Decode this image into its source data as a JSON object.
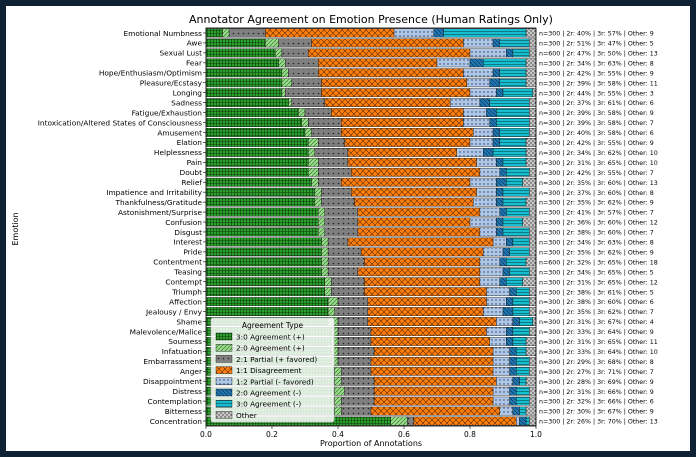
{
  "chart_data": {
    "type": "bar",
    "orientation": "horizontal",
    "stacked": true,
    "title": "Annotator Agreement on Emotion Presence (Human Ratings Only)",
    "xlabel": "Proportion of Annotations",
    "ylabel": "Emotion",
    "xlim": [
      0,
      1
    ],
    "xticks": [
      "0.0",
      "0.2",
      "0.4",
      "0.6",
      "0.8",
      "1.0"
    ],
    "legend_title": "Agreement Type",
    "legend_position": "lower-left",
    "series": [
      {
        "name": "3:0 Agreement (+)",
        "color": "#2ca02c",
        "pattern": "grid"
      },
      {
        "name": "2:0 Agreement (+)",
        "color": "#98df8a",
        "pattern": "diag"
      },
      {
        "name": "2:1 Partial (+ favored)",
        "color": "#7f7f7f",
        "pattern": "dots"
      },
      {
        "name": "1:1 Disagreement",
        "color": "#ff7f0e",
        "pattern": "cross"
      },
      {
        "name": "1:2 Partial (- favored)",
        "color": "#aec7e8",
        "pattern": "dots"
      },
      {
        "name": "2:0 Agreement (-)",
        "color": "#1f77b4",
        "pattern": "diag"
      },
      {
        "name": "3:0 Agreement (-)",
        "color": "#17becf",
        "pattern": "hline"
      },
      {
        "name": "Other",
        "color": "#c7c7c7",
        "pattern": "dots"
      }
    ],
    "rows": [
      {
        "label": "Emotional Numbness",
        "values": [
          0.05,
          0.02,
          0.11,
          0.39,
          0.12,
          0.03,
          0.25,
          0.03
        ],
        "annotation": "n=300 | 2r: 40% | 3r: 57% | Other: 9"
      },
      {
        "label": "Awe",
        "values": [
          0.18,
          0.04,
          0.1,
          0.46,
          0.09,
          0.02,
          0.09,
          0.02
        ],
        "annotation": "n=300 | 2r: 51% | 3r: 47% | Other: 5"
      },
      {
        "label": "Sexual Lust",
        "values": [
          0.21,
          0.02,
          0.08,
          0.49,
          0.11,
          0.02,
          0.05,
          0.02
        ],
        "annotation": "n=600 | 2r: 47% | 3r: 50% | Other: 13"
      },
      {
        "label": "Fear",
        "values": [
          0.22,
          0.02,
          0.1,
          0.36,
          0.1,
          0.04,
          0.13,
          0.03
        ],
        "annotation": "n=300 | 2r: 34% | 3r: 63% | Other: 8"
      },
      {
        "label": "Hope/Enthusiasm/Optimism",
        "values": [
          0.23,
          0.02,
          0.09,
          0.44,
          0.09,
          0.02,
          0.08,
          0.03
        ],
        "annotation": "n=300 | 2r: 42% | 3r: 55% | Other: 9"
      },
      {
        "label": "Pleasure/Ecstasy",
        "values": [
          0.23,
          0.03,
          0.09,
          0.44,
          0.07,
          0.03,
          0.08,
          0.03
        ],
        "annotation": "n=300 | 2r: 39% | 3r: 58% | Other: 11"
      },
      {
        "label": "Longing",
        "values": [
          0.23,
          0.01,
          0.11,
          0.45,
          0.08,
          0.02,
          0.09,
          0.01
        ],
        "annotation": "n=300 | 2r: 44% | 3r: 55% | Other: 3"
      },
      {
        "label": "Sadness",
        "values": [
          0.25,
          0.01,
          0.1,
          0.38,
          0.09,
          0.03,
          0.12,
          0.02
        ],
        "annotation": "n=300 | 2r: 37% | 3r: 61% | Other: 6"
      },
      {
        "label": "Fatigue/Exhaustion",
        "values": [
          0.28,
          0.02,
          0.08,
          0.4,
          0.07,
          0.03,
          0.1,
          0.02
        ],
        "annotation": "n=300 | 2r: 39% | 3r: 58% | Other: 9"
      },
      {
        "label": "Intoxication/Altered States of Consciousness",
        "values": [
          0.29,
          0.02,
          0.1,
          0.37,
          0.08,
          0.02,
          0.1,
          0.02
        ],
        "annotation": "n=300 | 2r: 39% | 3r: 58% | Other: 7"
      },
      {
        "label": "Amusement",
        "values": [
          0.3,
          0.02,
          0.09,
          0.4,
          0.06,
          0.02,
          0.09,
          0.02
        ],
        "annotation": "n=300 | 2r: 40% | 3r: 58% | Other: 6"
      },
      {
        "label": "Elation",
        "values": [
          0.31,
          0.03,
          0.08,
          0.38,
          0.07,
          0.02,
          0.08,
          0.03
        ],
        "annotation": "n=300 | 2r: 42% | 3r: 55% | Other: 9"
      },
      {
        "label": "Helplessness",
        "values": [
          0.31,
          0.02,
          0.1,
          0.33,
          0.08,
          0.03,
          0.1,
          0.03
        ],
        "annotation": "n=300 | 2r: 34% | 3r: 62% | Other: 10"
      },
      {
        "label": "Pain",
        "values": [
          0.31,
          0.03,
          0.09,
          0.39,
          0.06,
          0.02,
          0.07,
          0.03
        ],
        "annotation": "n=300 | 2r: 31% | 3r: 65% | Other: 10"
      },
      {
        "label": "Doubt",
        "values": [
          0.31,
          0.03,
          0.1,
          0.39,
          0.06,
          0.02,
          0.07,
          0.02
        ],
        "annotation": "n=300 | 2r: 42% | 3r: 55% | Other: 7"
      },
      {
        "label": "Relief",
        "values": [
          0.32,
          0.02,
          0.07,
          0.39,
          0.08,
          0.03,
          0.05,
          0.04
        ],
        "annotation": "n=300 | 2r: 35% | 3r: 60% | Other: 13"
      },
      {
        "label": "Impatience and Irritability",
        "values": [
          0.33,
          0.02,
          0.09,
          0.38,
          0.06,
          0.02,
          0.08,
          0.02
        ],
        "annotation": "n=300 | 2r: 37% | 3r: 60% | Other: 8"
      },
      {
        "label": "Thankfulness/Gratitude",
        "values": [
          0.33,
          0.02,
          0.1,
          0.36,
          0.07,
          0.02,
          0.07,
          0.03
        ],
        "annotation": "n=300 | 2r: 35% | 3r: 62% | Other: 9"
      },
      {
        "label": "Astonishment/Surprise",
        "values": [
          0.34,
          0.02,
          0.1,
          0.37,
          0.06,
          0.02,
          0.07,
          0.02
        ],
        "annotation": "n=300 | 2r: 41% | 3r: 57% | Other: 7"
      },
      {
        "label": "Confusion",
        "values": [
          0.34,
          0.02,
          0.1,
          0.34,
          0.08,
          0.02,
          0.06,
          0.04
        ],
        "annotation": "n=300 | 2r: 36% | 3r: 60% | Other: 12"
      },
      {
        "label": "Disgust",
        "values": [
          0.34,
          0.02,
          0.1,
          0.37,
          0.05,
          0.02,
          0.08,
          0.02
        ],
        "annotation": "n=300 | 2r: 38% | 3r: 60% | Other: 7"
      },
      {
        "label": "Interest",
        "values": [
          0.35,
          0.02,
          0.06,
          0.44,
          0.04,
          0.02,
          0.05,
          0.02
        ],
        "annotation": "n=300 | 2r: 34% | 3r: 63% | Other: 8"
      },
      {
        "label": "Pride",
        "values": [
          0.35,
          0.02,
          0.1,
          0.37,
          0.06,
          0.02,
          0.06,
          0.02
        ],
        "annotation": "n=300 | 2r: 35% | 3r: 62% | Other: 9"
      },
      {
        "label": "Contentment",
        "values": [
          0.35,
          0.02,
          0.11,
          0.35,
          0.06,
          0.02,
          0.06,
          0.03
        ],
        "annotation": "n=600 | 2r: 32% | 3r: 65% | Other: 18"
      },
      {
        "label": "Teasing",
        "values": [
          0.35,
          0.02,
          0.09,
          0.37,
          0.07,
          0.02,
          0.06,
          0.02
        ],
        "annotation": "n=300 | 2r: 34% | 3r: 65% | Other: 5"
      },
      {
        "label": "Contempt",
        "values": [
          0.36,
          0.02,
          0.1,
          0.35,
          0.06,
          0.02,
          0.05,
          0.04
        ],
        "annotation": "n=300 | 2r: 31% | 3r: 65% | Other: 12"
      },
      {
        "label": "Triumph",
        "values": [
          0.36,
          0.02,
          0.1,
          0.37,
          0.07,
          0.02,
          0.04,
          0.02
        ],
        "annotation": "n=300 | 2r: 38% | 3r: 61% | Other: 5"
      },
      {
        "label": "Affection",
        "values": [
          0.37,
          0.03,
          0.09,
          0.36,
          0.06,
          0.02,
          0.05,
          0.02
        ],
        "annotation": "n=300 | 2r: 38% | 3r: 60% | Other: 6"
      },
      {
        "label": "Jealousy / Envy",
        "values": [
          0.37,
          0.02,
          0.1,
          0.35,
          0.06,
          0.03,
          0.05,
          0.02
        ],
        "annotation": "n=300 | 2r: 35% | 3r: 62% | Other: 7"
      },
      {
        "label": "Shame",
        "values": [
          0.37,
          0.03,
          0.09,
          0.39,
          0.05,
          0.02,
          0.04,
          0.01
        ],
        "annotation": "n=300 | 2r: 31% | 3r: 67% | Other: 4"
      },
      {
        "label": "Malevolence/Malice",
        "values": [
          0.38,
          0.02,
          0.1,
          0.35,
          0.06,
          0.02,
          0.05,
          0.02
        ],
        "annotation": "n=300 | 2r: 33% | 3r: 64% | Other: 9"
      },
      {
        "label": "Sourness",
        "values": [
          0.38,
          0.02,
          0.1,
          0.36,
          0.05,
          0.02,
          0.04,
          0.03
        ],
        "annotation": "n=300 | 2r: 31% | 3r: 65% | Other: 11"
      },
      {
        "label": "Infatuation",
        "values": [
          0.38,
          0.02,
          0.11,
          0.36,
          0.05,
          0.02,
          0.03,
          0.03
        ],
        "annotation": "n=300 | 2r: 33% | 3r: 64% | Other: 10"
      },
      {
        "label": "Embarrassment",
        "values": [
          0.38,
          0.02,
          0.1,
          0.37,
          0.05,
          0.02,
          0.04,
          0.02
        ],
        "annotation": "n=300 | 2r: 29% | 3r: 68% | Other: 8"
      },
      {
        "label": "Anger",
        "values": [
          0.39,
          0.02,
          0.09,
          0.37,
          0.05,
          0.02,
          0.04,
          0.02
        ],
        "annotation": "n=300 | 2r: 27% | 3r: 71% | Other: 7"
      },
      {
        "label": "Disappointment",
        "values": [
          0.39,
          0.02,
          0.1,
          0.37,
          0.05,
          0.02,
          0.02,
          0.03
        ],
        "annotation": "n=300 | 2r: 28% | 3r: 69% | Other: 9"
      },
      {
        "label": "Distress",
        "values": [
          0.39,
          0.03,
          0.09,
          0.36,
          0.05,
          0.02,
          0.04,
          0.02
        ],
        "annotation": "n=300 | 2r: 31% | 3r: 66% | Other: 9"
      },
      {
        "label": "Contemplation",
        "values": [
          0.39,
          0.02,
          0.1,
          0.36,
          0.05,
          0.02,
          0.04,
          0.02
        ],
        "annotation": "n=300 | 2r: 32% | 3r: 66% | Other: 6"
      },
      {
        "label": "Bitterness",
        "values": [
          0.39,
          0.02,
          0.09,
          0.39,
          0.04,
          0.02,
          0.02,
          0.03
        ],
        "annotation": "n=300 | 2r: 30% | 3r: 67% | Other: 9"
      },
      {
        "label": "Concentration",
        "values": [
          0.56,
          0.05,
          0.02,
          0.31,
          0.01,
          0.02,
          0.01,
          0.02
        ],
        "annotation": "n=300 | 2r: 26% | 3r: 70% | Other: 13"
      }
    ]
  }
}
